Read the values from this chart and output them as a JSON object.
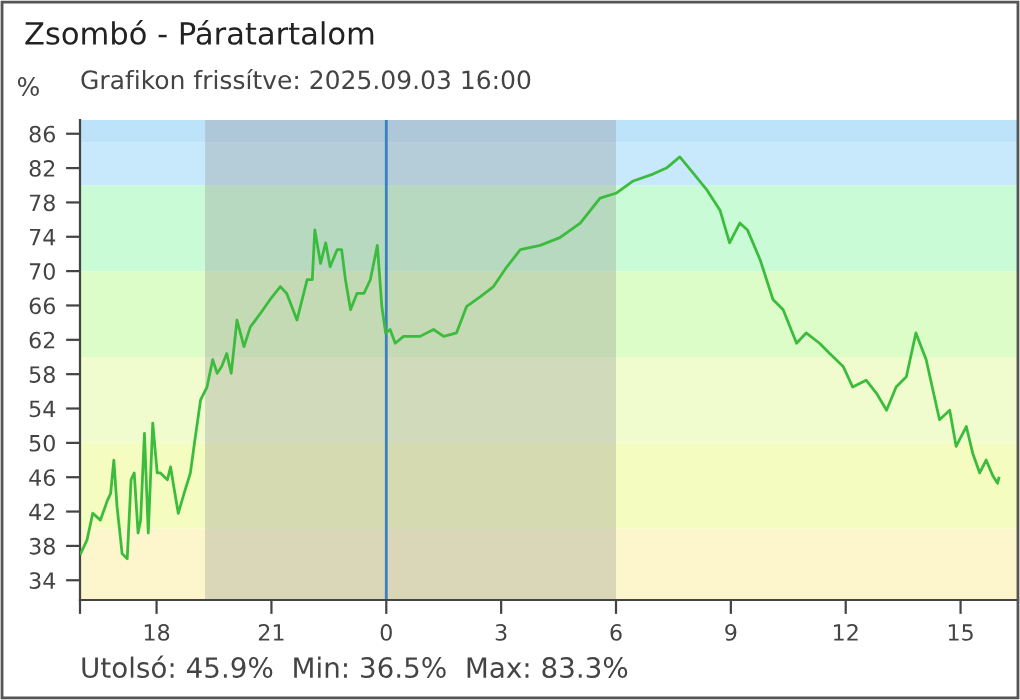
{
  "chart_data": {
    "type": "line",
    "title": "Zsombó - Páratartalom",
    "subtitle": "Grafikon frissítve: 2025.09.03 16:00",
    "ylabel": "%",
    "annotations": [
      "Utolsó: 45.9%  Min: 36.5%  Max: 83.3%"
    ],
    "x": [
      "2025-09-02T16:01",
      "2025-09-02T16:11",
      "2025-09-02T16:20",
      "2025-09-02T16:32",
      "2025-09-02T16:43",
      "2025-09-02T16:48",
      "2025-09-02T16:53",
      "2025-09-02T16:58",
      "2025-09-02T17:06",
      "2025-09-02T17:14",
      "2025-09-02T17:20",
      "2025-09-02T17:25",
      "2025-09-02T17:31",
      "2025-09-02T17:35",
      "2025-09-02T17:41",
      "2025-09-02T17:47",
      "2025-09-02T17:54",
      "2025-09-02T18:01",
      "2025-09-02T18:06",
      "2025-09-02T18:17",
      "2025-09-02T18:22",
      "2025-09-02T18:27",
      "2025-09-02T18:34",
      "2025-09-02T18:43",
      "2025-09-02T18:53",
      "2025-09-02T19:00",
      "2025-09-02T19:09",
      "2025-09-02T19:19",
      "2025-09-02T19:28",
      "2025-09-02T19:35",
      "2025-09-02T19:42",
      "2025-09-02T19:50",
      "2025-09-02T19:57",
      "2025-09-02T20:06",
      "2025-09-02T20:17",
      "2025-09-02T20:27",
      "2025-09-02T20:43",
      "2025-09-02T20:58",
      "2025-09-02T21:14",
      "2025-09-02T21:24",
      "2025-09-02T21:40",
      "2025-09-02T21:56",
      "2025-09-02T22:04",
      "2025-09-02T22:08",
      "2025-09-02T22:17",
      "2025-09-02T22:25",
      "2025-09-02T22:32",
      "2025-09-02T22:43",
      "2025-09-02T22:50",
      "2025-09-02T22:56",
      "2025-09-02T23:04",
      "2025-09-02T23:14",
      "2025-09-02T23:25",
      "2025-09-02T23:35",
      "2025-09-02T23:46",
      "2025-09-02T23:53",
      "2025-09-02T23:59",
      "2025-09-03T00:06",
      "2025-09-03T00:14",
      "2025-09-03T00:27",
      "2025-09-03T00:53",
      "2025-09-03T01:14",
      "2025-09-03T01:30",
      "2025-09-03T01:50",
      "2025-09-03T02:06",
      "2025-09-03T02:27",
      "2025-09-03T02:48",
      "2025-09-03T03:09",
      "2025-09-03T03:30",
      "2025-09-03T04:01",
      "2025-09-03T04:32",
      "2025-09-03T05:04",
      "2025-09-03T05:35",
      "2025-09-03T06:01",
      "2025-09-03T06:27",
      "2025-09-03T06:58",
      "2025-09-03T07:19",
      "2025-09-03T07:40",
      "2025-09-03T08:01",
      "2025-09-03T08:22",
      "2025-09-03T08:43",
      "2025-09-03T08:58",
      "2025-09-03T09:14",
      "2025-09-03T09:26",
      "2025-09-03T09:46",
      "2025-09-03T10:06",
      "2025-09-03T10:22",
      "2025-09-03T10:43",
      "2025-09-03T10:58",
      "2025-09-03T11:19",
      "2025-09-03T11:35",
      "2025-09-03T11:56",
      "2025-09-03T12:11",
      "2025-09-03T12:32",
      "2025-09-03T12:48",
      "2025-09-03T13:04",
      "2025-09-03T13:19",
      "2025-09-03T13:35",
      "2025-09-03T13:50",
      "2025-09-03T14:06",
      "2025-09-03T14:27",
      "2025-09-03T14:43",
      "2025-09-03T14:53",
      "2025-09-03T15:09",
      "2025-09-03T15:19",
      "2025-09-03T15:30",
      "2025-09-03T15:40",
      "2025-09-03T15:51",
      "2025-09-03T15:58",
      "2025-09-03T16:00"
    ],
    "series": [
      {
        "color": "#3cbc3c",
        "values": [
          37.1,
          38.7,
          41.8,
          41.0,
          43.3,
          44.1,
          48.0,
          42.6,
          37.1,
          36.5,
          45.7,
          46.5,
          39.5,
          41.0,
          51.1,
          39.5,
          52.3,
          46.5,
          46.5,
          45.7,
          47.2,
          44.9,
          41.8,
          44.1,
          46.5,
          50.3,
          55.0,
          56.5,
          59.7,
          58.1,
          58.9,
          60.4,
          58.1,
          64.3,
          61.2,
          63.5,
          65.1,
          66.7,
          68.2,
          67.4,
          64.3,
          69.0,
          69.0,
          74.8,
          70.9,
          73.3,
          70.5,
          72.5,
          72.5,
          69.0,
          65.5,
          67.4,
          67.4,
          69.0,
          73.0,
          65.9,
          62.8,
          63.2,
          61.6,
          62.4,
          62.4,
          63.2,
          62.4,
          62.8,
          65.9,
          67.0,
          68.2,
          70.5,
          72.5,
          73.0,
          73.9,
          75.6,
          78.5,
          79.1,
          80.5,
          81.3,
          82.0,
          83.3,
          81.4,
          79.5,
          77.1,
          73.3,
          75.6,
          74.8,
          71.3,
          66.7,
          65.5,
          61.6,
          62.8,
          61.6,
          60.4,
          58.9,
          56.5,
          57.3,
          55.8,
          53.8,
          56.5,
          57.7,
          62.8,
          59.7,
          52.7,
          53.8,
          49.6,
          51.9,
          48.8,
          46.5,
          48.0,
          46.1,
          45.3,
          45.9
        ]
      }
    ],
    "xlim": [
      "2025-09-02T16:00",
      "2025-09-03T16:30"
    ],
    "xticks": [
      {
        "value": "2025-09-02T16:00",
        "label": null
      },
      {
        "value": "2025-09-02T18:00",
        "label": "18"
      },
      {
        "value": "2025-09-02T21:00",
        "label": "21"
      },
      {
        "value": "2025-09-03T00:00",
        "label": "0"
      },
      {
        "value": "2025-09-03T03:00",
        "label": "3"
      },
      {
        "value": "2025-09-03T06:00",
        "label": "6"
      },
      {
        "value": "2025-09-03T09:00",
        "label": "9"
      },
      {
        "value": "2025-09-03T12:00",
        "label": "12"
      },
      {
        "value": "2025-09-03T15:00",
        "label": "15"
      }
    ],
    "ylim": [
      31.7,
      87.6
    ],
    "yticks": [
      34,
      38,
      42,
      46,
      50,
      54,
      58,
      62,
      66,
      70,
      74,
      78,
      82,
      86
    ],
    "bands": [
      {
        "axis": "y",
        "from": 31.7,
        "to": 40,
        "color": "#fdf6cc"
      },
      {
        "axis": "y",
        "from": 40,
        "to": 50,
        "color": "#f5fcc0"
      },
      {
        "axis": "y",
        "from": 50,
        "to": 60,
        "color": "#f0fcce"
      },
      {
        "axis": "y",
        "from": 60,
        "to": 70,
        "color": "#dcfcc8"
      },
      {
        "axis": "y",
        "from": 70,
        "to": 80,
        "color": "#c9fbd6"
      },
      {
        "axis": "y",
        "from": 80,
        "to": 85,
        "color": "#c8e8fb"
      },
      {
        "axis": "y",
        "from": 85,
        "to": 87.6,
        "color": "#bde3fb"
      },
      {
        "axis": "x",
        "from": "2025-09-02T19:16",
        "to": "2025-09-03T06:00",
        "color": "#8c8c8c"
      }
    ],
    "ref_lines": [
      {
        "axis": "x",
        "value": "2025-09-03T00:00",
        "color": "#3a7fc0"
      }
    ],
    "grid": false,
    "legend": false,
    "marker": "none",
    "line_style": "solid"
  }
}
